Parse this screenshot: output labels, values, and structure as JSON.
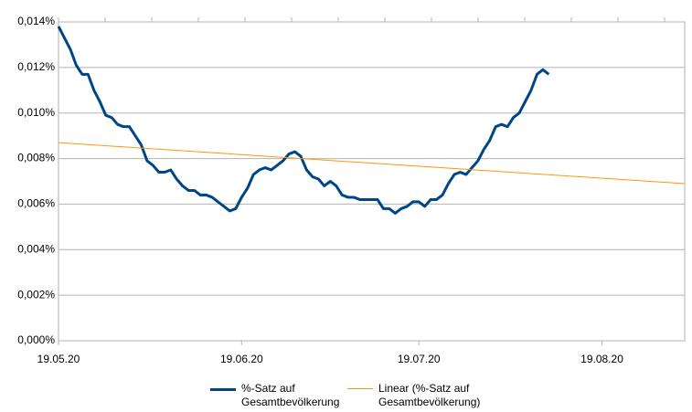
{
  "chart_data": {
    "type": "line",
    "xlim": [
      "19.05.20",
      "02.09.20"
    ],
    "xticks": [
      "19.05.20",
      "19.06.20",
      "19.07.20",
      "19.08.20"
    ],
    "ylim": [
      0,
      0.014
    ],
    "yticks": [
      {
        "value": 0,
        "label": "0,000%"
      },
      {
        "value": 0.002,
        "label": "0,002%"
      },
      {
        "value": 0.004,
        "label": "0,004%"
      },
      {
        "value": 0.006,
        "label": "0,006%"
      },
      {
        "value": 0.008,
        "label": "0,008%"
      },
      {
        "value": 0.01,
        "label": "0,010%"
      },
      {
        "value": 0.012,
        "label": "0,012%"
      },
      {
        "value": 0.014,
        "label": "0,014%"
      }
    ],
    "grid": true,
    "series": [
      {
        "name": "%-Satz auf Gesamtbevölkerung",
        "color": "#004586",
        "width": 3,
        "x": [
          "19.05.20",
          "20.05.20",
          "21.05.20",
          "22.05.20",
          "23.05.20",
          "24.05.20",
          "25.05.20",
          "26.05.20",
          "27.05.20",
          "28.05.20",
          "29.05.20",
          "30.05.20",
          "31.05.20",
          "01.06.20",
          "02.06.20",
          "03.06.20",
          "04.06.20",
          "05.06.20",
          "06.06.20",
          "07.06.20",
          "08.06.20",
          "09.06.20",
          "10.06.20",
          "11.06.20",
          "12.06.20",
          "13.06.20",
          "14.06.20",
          "15.06.20",
          "16.06.20",
          "17.06.20",
          "18.06.20",
          "19.06.20",
          "20.06.20",
          "21.06.20",
          "22.06.20",
          "23.06.20",
          "24.06.20",
          "25.06.20",
          "26.06.20",
          "27.06.20",
          "28.06.20",
          "29.06.20",
          "30.06.20",
          "01.07.20",
          "02.07.20",
          "03.07.20",
          "04.07.20",
          "05.07.20",
          "06.07.20",
          "07.07.20",
          "08.07.20",
          "09.07.20",
          "10.07.20",
          "11.07.20",
          "12.07.20",
          "13.07.20",
          "14.07.20",
          "15.07.20",
          "16.07.20",
          "17.07.20",
          "18.07.20",
          "19.07.20",
          "20.07.20",
          "21.07.20",
          "22.07.20",
          "23.07.20",
          "24.07.20",
          "25.07.20",
          "26.07.20",
          "27.07.20",
          "28.07.20",
          "29.07.20",
          "30.07.20",
          "31.07.20",
          "01.08.20",
          "02.08.20",
          "03.08.20",
          "04.08.20",
          "05.08.20",
          "06.08.20",
          "07.08.20",
          "08.08.20",
          "09.08.20",
          "10.08.20"
        ],
        "values": [
          0.0138,
          0.0133,
          0.0128,
          0.0121,
          0.0117,
          0.0117,
          0.011,
          0.0105,
          0.0099,
          0.0098,
          0.0095,
          0.0094,
          0.0094,
          0.009,
          0.0086,
          0.0079,
          0.0077,
          0.0074,
          0.0074,
          0.0075,
          0.0071,
          0.0068,
          0.0066,
          0.0066,
          0.0064,
          0.0064,
          0.0063,
          0.0061,
          0.0059,
          0.0057,
          0.0058,
          0.0063,
          0.0067,
          0.0073,
          0.0075,
          0.0076,
          0.0075,
          0.0077,
          0.0079,
          0.0082,
          0.0083,
          0.0081,
          0.0075,
          0.0072,
          0.0071,
          0.0068,
          0.007,
          0.0068,
          0.0064,
          0.0063,
          0.0063,
          0.0062,
          0.0062,
          0.0062,
          0.0062,
          0.0058,
          0.0058,
          0.0056,
          0.0058,
          0.0059,
          0.0061,
          0.0061,
          0.0059,
          0.0062,
          0.0062,
          0.0064,
          0.0069,
          0.0073,
          0.0074,
          0.0073,
          0.0076,
          0.0079,
          0.0084,
          0.0088,
          0.0094,
          0.0095,
          0.0094,
          0.0098,
          0.01,
          0.0105,
          0.011,
          0.0117,
          0.0119,
          0.0117
        ]
      },
      {
        "name": "Linear (%-Satz auf Gesamtbevölkerung)",
        "color": "#ff950e",
        "width": 1,
        "x": [
          "19.05.20",
          "02.09.20"
        ],
        "values": [
          0.0087,
          0.0069
        ]
      }
    ]
  }
}
